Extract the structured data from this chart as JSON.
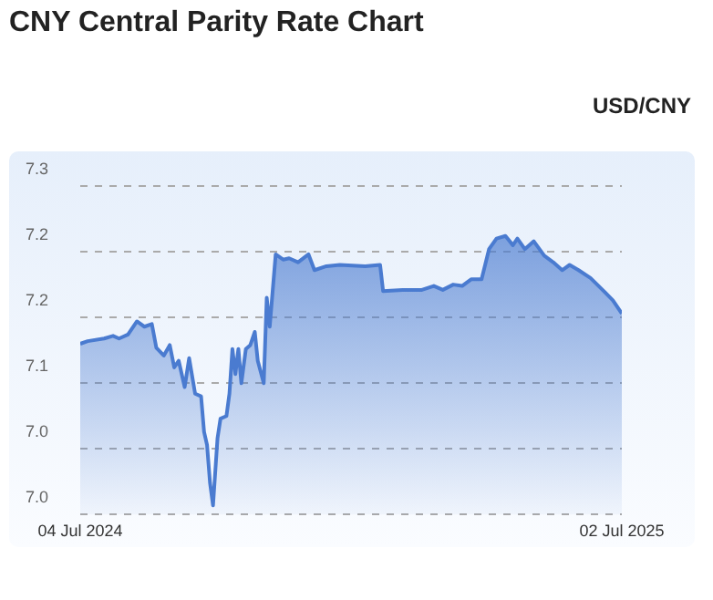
{
  "chart_data": {
    "type": "area",
    "title": "CNY Central Parity Rate Chart",
    "subtitle": "USD/CNY",
    "x": [
      "2024-07-04",
      "2024-07-09",
      "2024-07-20",
      "2024-07-26",
      "2024-07-30",
      "2024-08-05",
      "2024-08-11",
      "2024-08-16",
      "2024-08-21",
      "2024-08-24",
      "2024-08-29",
      "2024-09-02",
      "2024-09-05",
      "2024-09-08",
      "2024-09-12",
      "2024-09-15",
      "2024-09-19",
      "2024-09-23",
      "2024-09-25",
      "2024-09-27",
      "2024-09-29",
      "2024-10-01",
      "2024-10-04",
      "2024-10-06",
      "2024-10-10",
      "2024-10-12",
      "2024-10-14",
      "2024-10-16",
      "2024-10-18",
      "2024-10-20",
      "2024-10-23",
      "2024-10-26",
      "2024-10-29",
      "2024-10-31",
      "2024-11-04",
      "2024-11-06",
      "2024-11-08",
      "2024-11-12",
      "2024-11-17",
      "2024-11-21",
      "2024-11-27",
      "2024-12-04",
      "2024-12-08",
      "2024-12-16",
      "2024-12-25",
      "2025-01-11",
      "2025-01-21",
      "2025-01-23",
      "2025-02-05",
      "2025-02-18",
      "2025-02-26",
      "2025-03-04",
      "2025-03-11",
      "2025-03-17",
      "2025-03-23",
      "2025-03-30",
      "2025-04-04",
      "2025-04-09",
      "2025-04-15",
      "2025-04-20",
      "2025-04-23",
      "2025-04-28",
      "2025-05-04",
      "2025-05-11",
      "2025-05-17",
      "2025-05-23",
      "2025-05-28",
      "2025-06-03",
      "2025-06-11",
      "2025-06-20",
      "2025-06-26",
      "2025-07-02"
    ],
    "values": [
      7.13,
      7.132,
      7.134,
      7.136,
      7.134,
      7.137,
      7.147,
      7.143,
      7.145,
      7.127,
      7.121,
      7.129,
      7.112,
      7.117,
      7.097,
      7.119,
      7.092,
      7.09,
      7.063,
      7.053,
      7.024,
      7.007,
      7.058,
      7.073,
      7.075,
      7.092,
      7.126,
      7.107,
      7.126,
      7.1,
      7.126,
      7.129,
      7.139,
      7.117,
      7.1,
      7.165,
      7.143,
      7.198,
      7.194,
      7.195,
      7.192,
      7.198,
      7.186,
      7.189,
      7.19,
      7.189,
      7.19,
      7.17,
      7.171,
      7.171,
      7.174,
      7.171,
      7.175,
      7.174,
      7.179,
      7.179,
      7.202,
      7.21,
      7.212,
      7.205,
      7.21,
      7.202,
      7.208,
      7.197,
      7.192,
      7.186,
      7.19,
      7.186,
      7.18,
      7.17,
      7.163,
      7.153
    ],
    "color": "#4a7bd0",
    "marker": "none",
    "grid": "y",
    "xlim": [
      "2024-07-04",
      "2025-07-02"
    ],
    "xticks": [
      {
        "value": "2024-07-04",
        "label": "04 Jul 2024"
      },
      {
        "value": "2025-07-02",
        "label": "02 Jul 2025"
      }
    ],
    "ylim": [
      7.0,
      7.25
    ],
    "yticks": [
      {
        "value": 7.0,
        "label": "7.0"
      },
      {
        "value": 7.05,
        "label": "7.0"
      },
      {
        "value": 7.1,
        "label": "7.1"
      },
      {
        "value": 7.15,
        "label": "7.2"
      },
      {
        "value": 7.2,
        "label": "7.2"
      },
      {
        "value": 7.25,
        "label": "7.3"
      }
    ]
  }
}
